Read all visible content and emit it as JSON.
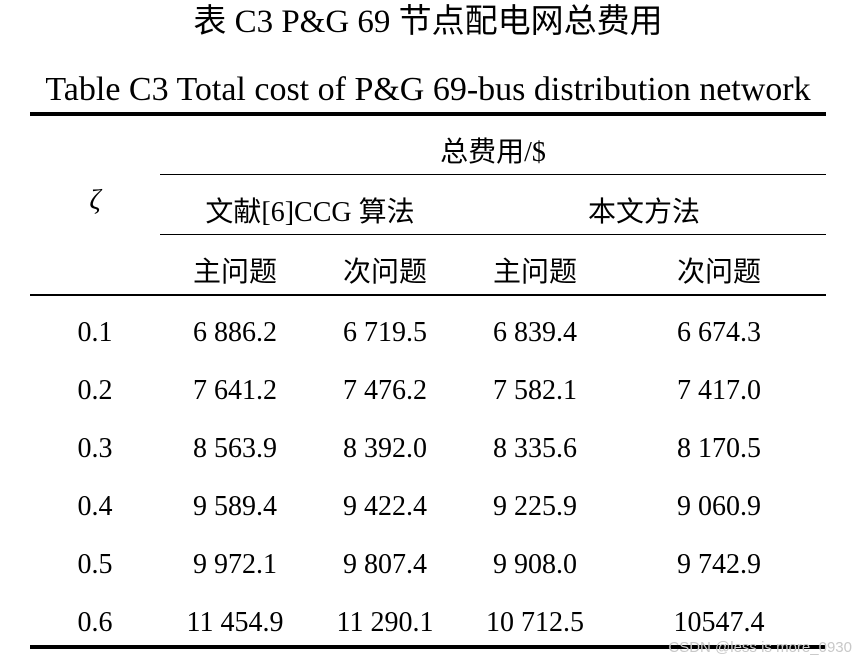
{
  "title_cn": "表 C3 P&G 69 节点配电网总费用",
  "title_en": "Table C3 Total cost of P&G 69-bus distribution network",
  "header": {
    "zeta": "ζ",
    "total_cost": "总费用/$",
    "group_ref": "文献[6]CCG 算法",
    "group_ours": "本文方法",
    "main_problem": "主问题",
    "sub_problem": "次问题"
  },
  "rows": [
    {
      "zeta": "0.1",
      "ref_main": "6 886.2",
      "ref_sub": "6 719.5",
      "ours_main": "6 839.4",
      "ours_sub": "6 674.3"
    },
    {
      "zeta": "0.2",
      "ref_main": "7 641.2",
      "ref_sub": "7 476.2",
      "ours_main": "7 582.1",
      "ours_sub": "7 417.0"
    },
    {
      "zeta": "0.3",
      "ref_main": "8 563.9",
      "ref_sub": "8 392.0",
      "ours_main": "8 335.6",
      "ours_sub": "8 170.5"
    },
    {
      "zeta": "0.4",
      "ref_main": "9 589.4",
      "ref_sub": "9 422.4",
      "ours_main": "9 225.9",
      "ours_sub": "9 060.9"
    },
    {
      "zeta": "0.5",
      "ref_main": "9 972.1",
      "ref_sub": "9 807.4",
      "ours_main": "9 908.0",
      "ours_sub": "9 742.9"
    },
    {
      "zeta": "0.6",
      "ref_main": "11 454.9",
      "ref_sub": "11 290.1",
      "ours_main": "10 712.5",
      "ours_sub": "10547.4"
    }
  ],
  "watermark": "CSDN @less is more_0930"
}
